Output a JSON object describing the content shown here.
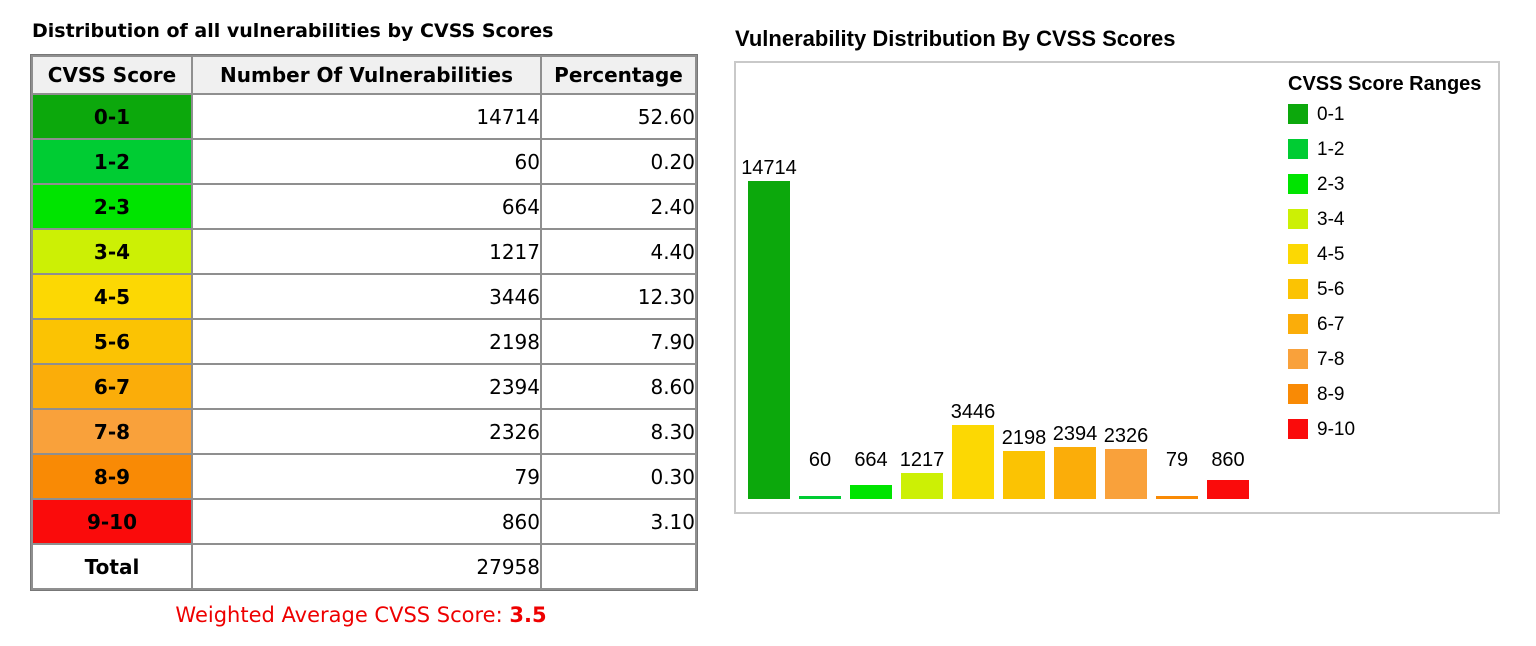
{
  "left": {
    "title": "Distribution of all vulnerabilities by CVSS Scores",
    "table": {
      "headers": [
        "CVSS Score",
        "Number Of Vulnerabilities",
        "Percentage"
      ],
      "rows": [
        {
          "range": "0-1",
          "count": "14714",
          "pct": "52.60",
          "color": "#0CA80C"
        },
        {
          "range": "1-2",
          "count": "60",
          "pct": "0.20",
          "color": "#00CC33"
        },
        {
          "range": "2-3",
          "count": "664",
          "pct": "2.40",
          "color": "#00E400"
        },
        {
          "range": "3-4",
          "count": "1217",
          "pct": "4.40",
          "color": "#CCF005"
        },
        {
          "range": "4-5",
          "count": "3446",
          "pct": "12.30",
          "color": "#FCD803"
        },
        {
          "range": "5-6",
          "count": "2198",
          "pct": "7.90",
          "color": "#FBC303"
        },
        {
          "range": "6-7",
          "count": "2394",
          "pct": "8.60",
          "color": "#FBAD09"
        },
        {
          "range": "7-8",
          "count": "2326",
          "pct": "8.30",
          "color": "#F9A13B"
        },
        {
          "range": "8-9",
          "count": "79",
          "pct": "0.30",
          "color": "#F98A05"
        },
        {
          "range": "9-10",
          "count": "860",
          "pct": "3.10",
          "color": "#FA0B0B"
        }
      ],
      "total_label": "Total",
      "total_count": "27958",
      "total_pct": ""
    },
    "weighted_label": "Weighted Average CVSS Score:",
    "weighted_value": "3.5",
    "weighted_color": "#EE0000"
  },
  "chart_data": {
    "type": "bar",
    "title": "Vulnerability Distribution By CVSS Scores",
    "categories": [
      "0-1",
      "1-2",
      "2-3",
      "3-4",
      "4-5",
      "5-6",
      "6-7",
      "7-8",
      "8-9",
      "9-10"
    ],
    "values": [
      14714,
      60,
      664,
      1217,
      3446,
      2198,
      2394,
      2326,
      79,
      860
    ],
    "bar_labels": [
      "14714",
      "60",
      "664",
      "1217",
      "3446",
      "2198",
      "2394",
      "2326",
      "79",
      "860"
    ],
    "colors": [
      "#0CA80C",
      "#00CC33",
      "#00E400",
      "#CCF005",
      "#FCD803",
      "#FBC303",
      "#FBAD09",
      "#F9A13B",
      "#F98A05",
      "#FA0B0B"
    ],
    "ylim": [
      0,
      14714
    ],
    "grid": false,
    "axes_labels_shown": false,
    "legend_title": "CVSS Score Ranges",
    "legend_position": "top-right"
  }
}
